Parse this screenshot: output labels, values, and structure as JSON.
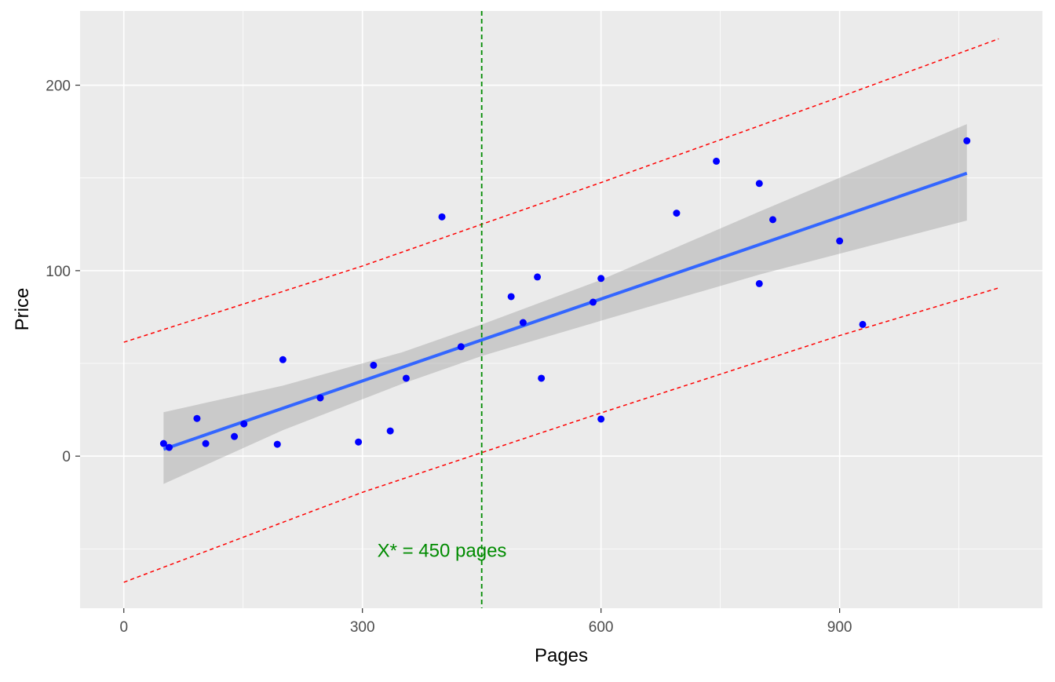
{
  "chart_data": {
    "type": "scatter",
    "title": "",
    "xlabel": "Pages",
    "ylabel": "Price",
    "xlim": [
      -55,
      1155
    ],
    "ylim": [
      -82,
      240
    ],
    "xticks": [
      0,
      300,
      600,
      900
    ],
    "yticks": [
      0,
      100,
      200
    ],
    "grid": true,
    "colors": {
      "panel": "#EBEBEB",
      "grid": "#FFFFFF",
      "points": "#0000FF",
      "fit_line": "#3366FF",
      "confidence_band": "#999999",
      "prediction_lines": "#FF0000",
      "vline": "#008B00",
      "annotation": "#008B00"
    },
    "points": [
      {
        "x": 50,
        "y": 6.8
      },
      {
        "x": 57,
        "y": 4.7
      },
      {
        "x": 92,
        "y": 20.3
      },
      {
        "x": 103,
        "y": 6.8
      },
      {
        "x": 139,
        "y": 10.6
      },
      {
        "x": 151,
        "y": 17.4
      },
      {
        "x": 193,
        "y": 6.4
      },
      {
        "x": 200,
        "y": 52
      },
      {
        "x": 247,
        "y": 31.4
      },
      {
        "x": 295,
        "y": 7.6
      },
      {
        "x": 314,
        "y": 49
      },
      {
        "x": 335,
        "y": 13.6
      },
      {
        "x": 355,
        "y": 42
      },
      {
        "x": 400,
        "y": 129
      },
      {
        "x": 424,
        "y": 59
      },
      {
        "x": 487,
        "y": 86
      },
      {
        "x": 502,
        "y": 72
      },
      {
        "x": 520,
        "y": 96.6
      },
      {
        "x": 525,
        "y": 42
      },
      {
        "x": 590,
        "y": 83
      },
      {
        "x": 600,
        "y": 95.8
      },
      {
        "x": 600,
        "y": 20
      },
      {
        "x": 695,
        "y": 131
      },
      {
        "x": 745,
        "y": 159
      },
      {
        "x": 799,
        "y": 147
      },
      {
        "x": 799,
        "y": 93
      },
      {
        "x": 816,
        "y": 127.5
      },
      {
        "x": 900,
        "y": 116
      },
      {
        "x": 929,
        "y": 71
      },
      {
        "x": 1060,
        "y": 170
      }
    ],
    "fit_line": {
      "x": [
        50,
        1060
      ],
      "y": [
        3.7,
        152.5
      ]
    },
    "confidence_band": {
      "x": [
        50,
        200,
        350,
        450,
        600,
        800,
        1060
      ],
      "lower": [
        -15,
        14,
        39,
        54,
        73,
        98,
        127
      ],
      "upper": [
        23.7,
        38,
        56,
        71,
        95,
        132,
        179
      ]
    },
    "prediction_upper": {
      "x": [
        0,
        300,
        600,
        900,
        1100
      ],
      "y": [
        61.4,
        102.5,
        147.5,
        193.6,
        225
      ]
    },
    "prediction_lower": {
      "x": [
        0,
        300,
        600,
        900,
        1100
      ],
      "y": [
        -68,
        -19.5,
        23.3,
        65,
        90.7
      ]
    },
    "vline_x": 450,
    "annotation": {
      "text": "X* = 450 pages",
      "x": 400,
      "y": -51
    }
  }
}
